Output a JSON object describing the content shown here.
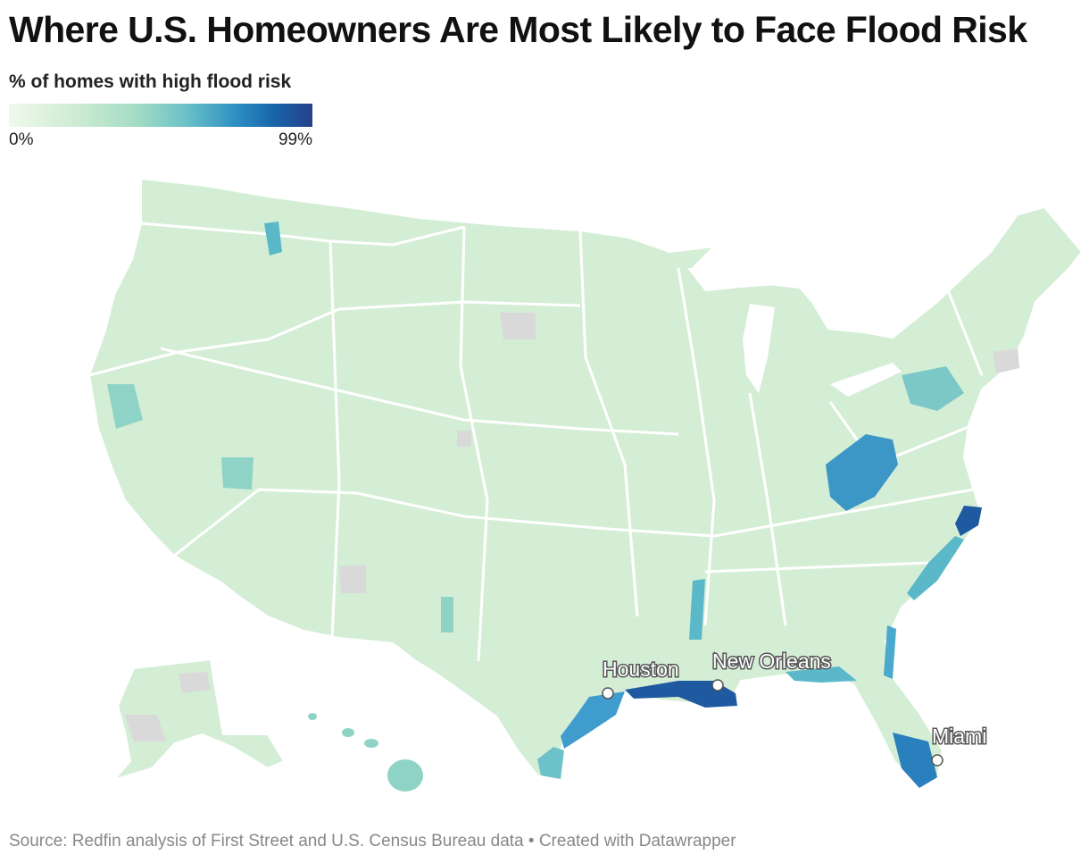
{
  "header": {
    "title": "Where U.S. Homeowners Are Most Likely to Face Flood Risk"
  },
  "legend": {
    "title": "% of homes with high flood risk",
    "min_label": "0%",
    "max_label": "99%",
    "color_low": "#f1f9eb",
    "color_mid": "#6cc2c8",
    "color_high": "#27408a"
  },
  "map": {
    "type": "choropleth",
    "geography": "U.S. counties",
    "colors": {
      "land": "#d4eed5",
      "border": "#ffffff",
      "no_data": "#d9d9d9"
    },
    "cities": [
      {
        "name": "Houston"
      },
      {
        "name": "New Orleans"
      },
      {
        "name": "Miami"
      }
    ]
  },
  "footer": {
    "source": "Source: Redfin analysis of First Street and U.S. Census Bureau data • Created with Datawrapper"
  }
}
